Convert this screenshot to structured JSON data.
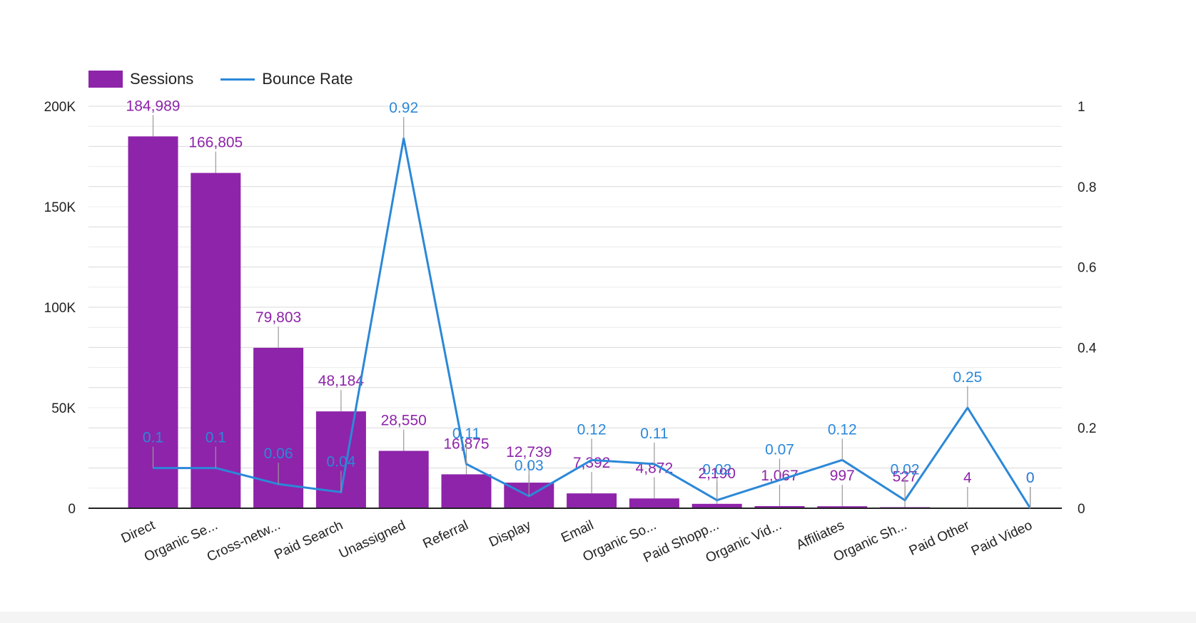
{
  "chart_data": {
    "type": "bar",
    "categories": [
      "Direct",
      "Organic Se...",
      "Cross-netw...",
      "Paid Search",
      "Unassigned",
      "Referral",
      "Display",
      "Email",
      "Organic So...",
      "Paid Shopp...",
      "Organic Vid...",
      "Affiliates",
      "Organic Sh...",
      "Paid Other",
      "Paid Video"
    ],
    "series": [
      {
        "name": "Sessions",
        "type": "bar",
        "axis": "left",
        "color": "#8e24aa",
        "values": [
          184989,
          166805,
          79803,
          48184,
          28550,
          16875,
          12739,
          7392,
          4872,
          2190,
          1067,
          997,
          527,
          4,
          0
        ],
        "labels": [
          "184,989",
          "166,805",
          "79,803",
          "48,184",
          "28,550",
          "16,875",
          "12,739",
          "7,392",
          "4,872",
          "2,190",
          "1,067",
          "997",
          "527",
          "4",
          "0"
        ]
      },
      {
        "name": "Bounce Rate",
        "type": "line",
        "axis": "right",
        "color": "#2b88d8",
        "values": [
          0.1,
          0.1,
          0.06,
          0.04,
          0.92,
          0.11,
          0.03,
          0.12,
          0.11,
          0.02,
          0.07,
          0.12,
          0.02,
          0.25,
          0
        ],
        "labels": [
          "0.1",
          "0.1",
          "0.06",
          "0.04",
          "0.92",
          "0.11",
          "0.03",
          "0.12",
          "0.11",
          "0.02",
          "0.07",
          "0.12",
          "0.02",
          "0.25",
          "0"
        ]
      }
    ],
    "y_left": {
      "ylim": [
        0,
        200000
      ],
      "ticks": [
        0,
        50000,
        100000,
        150000,
        200000
      ],
      "tick_labels": [
        "0",
        "50K",
        "100K",
        "150K",
        "200K"
      ]
    },
    "y_right": {
      "ylim": [
        0,
        1
      ],
      "ticks": [
        0,
        0.2,
        0.4,
        0.6,
        0.8,
        1
      ],
      "tick_labels": [
        "0",
        "0.2",
        "0.4",
        "0.6",
        "0.8",
        "1"
      ]
    },
    "grid": true,
    "legend": "top-left"
  }
}
